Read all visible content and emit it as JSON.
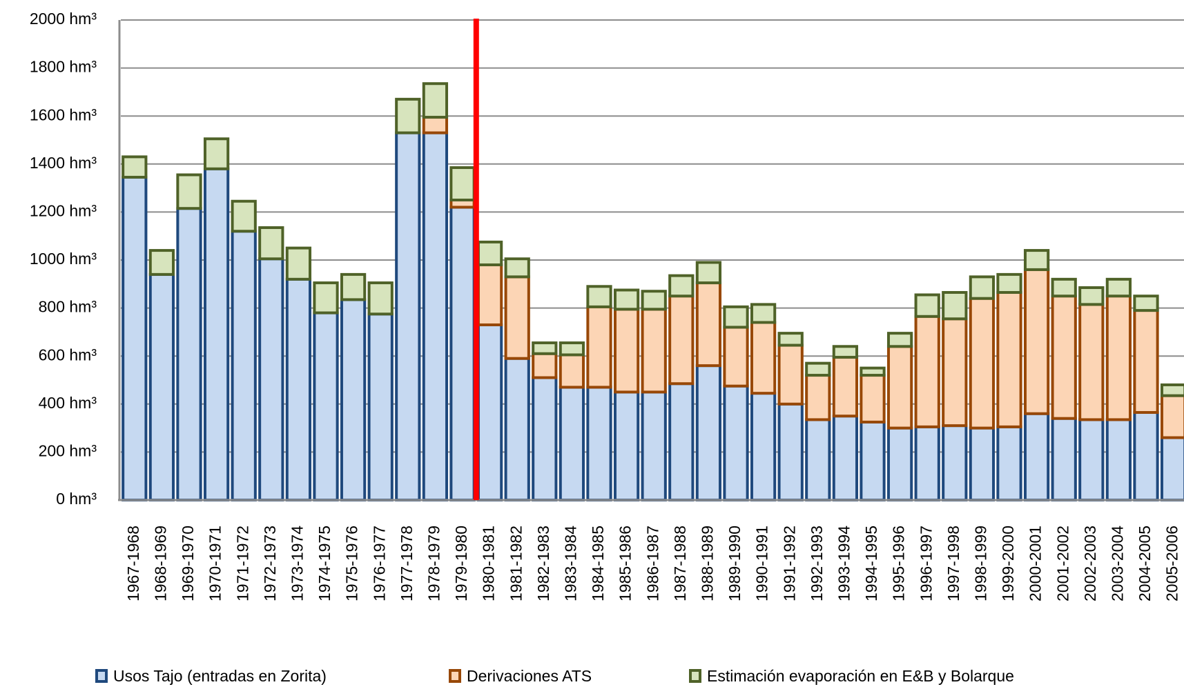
{
  "chart_data": {
    "type": "stacked-bar",
    "categories": [
      "1967-1968",
      "1968-1969",
      "1969-1970",
      "1970-1971",
      "1971-1972",
      "1972-1973",
      "1973-1974",
      "1974-1975",
      "1975-1976",
      "1976-1977",
      "1977-1978",
      "1978-1979",
      "1979-1980",
      "1980-1981",
      "1981-1982",
      "1982-1983",
      "1983-1984",
      "1984-1985",
      "1985-1986",
      "1986-1987",
      "1987-1988",
      "1988-1989",
      "1989-1990",
      "1990-1991",
      "1991-1992",
      "1992-1993",
      "1993-1994",
      "1994-1995",
      "1995-1996",
      "1996-1997",
      "1997-1998",
      "1998-1999",
      "1999-2000",
      "2000-2001",
      "2001-2002",
      "2002-2003",
      "2003-2004",
      "2004-2005",
      "2005-2006"
    ],
    "series": [
      {
        "name": "Usos Tajo (entradas en Zorita)",
        "color": "#c6d9f1",
        "stroke": "#1f497d",
        "values": [
          1345,
          940,
          1215,
          1380,
          1120,
          1005,
          920,
          780,
          835,
          775,
          1530,
          1530,
          1220,
          730,
          590,
          510,
          470,
          470,
          450,
          450,
          485,
          560,
          475,
          445,
          400,
          335,
          350,
          325,
          300,
          305,
          310,
          300,
          305,
          360,
          340,
          335,
          335,
          365,
          260
        ]
      },
      {
        "name": "Derivaciones ATS",
        "color": "#fcd5b5",
        "stroke": "#984807",
        "values": [
          0,
          0,
          0,
          0,
          0,
          0,
          0,
          0,
          0,
          0,
          0,
          65,
          30,
          250,
          340,
          100,
          135,
          335,
          345,
          345,
          365,
          345,
          245,
          295,
          245,
          185,
          245,
          195,
          340,
          460,
          445,
          540,
          560,
          600,
          510,
          480,
          515,
          425,
          175
        ]
      },
      {
        "name": "Estimación evaporación en E&B y Bolarque",
        "color": "#d7e4bd",
        "stroke": "#4f6228",
        "values": [
          85,
          100,
          140,
          125,
          125,
          130,
          130,
          125,
          105,
          130,
          140,
          140,
          135,
          95,
          75,
          45,
          50,
          85,
          80,
          75,
          85,
          85,
          85,
          75,
          50,
          50,
          45,
          30,
          55,
          90,
          110,
          90,
          75,
          80,
          70,
          70,
          70,
          60,
          45
        ]
      }
    ],
    "ylim": [
      0,
      2000
    ],
    "yticks": [
      {
        "value": 0,
        "label": "0 hm³"
      },
      {
        "value": 200,
        "label": "200 hm³"
      },
      {
        "value": 400,
        "label": "400 hm³"
      },
      {
        "value": 600,
        "label": "600 hm³"
      },
      {
        "value": 800,
        "label": "800 hm³"
      },
      {
        "value": 1000,
        "label": "1000 hm³"
      },
      {
        "value": 1200,
        "label": "1200 hm³"
      },
      {
        "value": 1400,
        "label": "1400 hm³"
      },
      {
        "value": 1600,
        "label": "1600 hm³"
      },
      {
        "value": 1800,
        "label": "1800 hm³"
      },
      {
        "value": 2000,
        "label": "2000 hm³"
      }
    ],
    "grid": true
  }
}
